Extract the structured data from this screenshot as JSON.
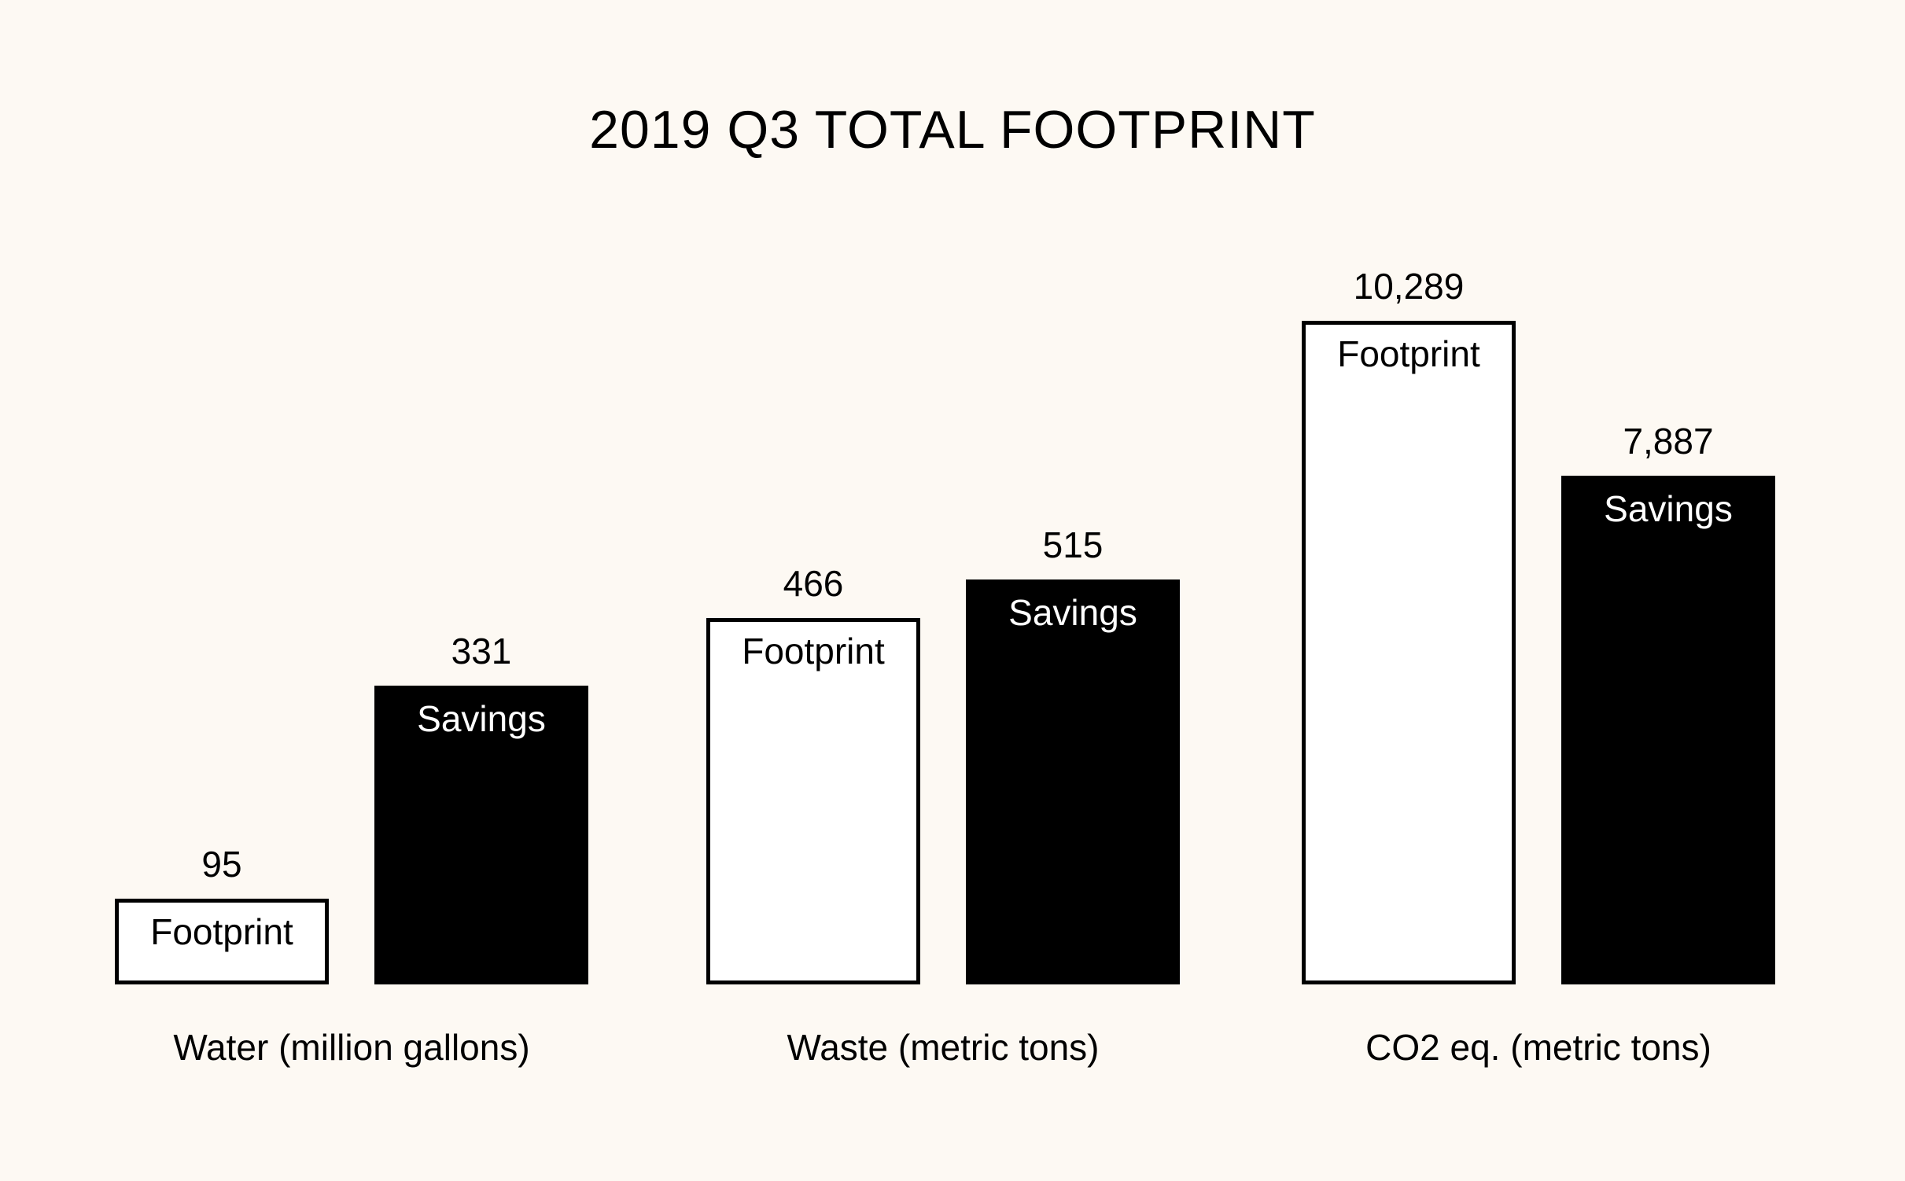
{
  "chart_data": {
    "type": "bar",
    "title": "2019 Q3 TOTAL FOOTPRINT",
    "categories": [
      "Water (million gallons)",
      "Waste (metric tons)",
      "CO2 eq. (metric tons)"
    ],
    "series": [
      {
        "name": "Footprint",
        "values": [
          95,
          466,
          10289
        ],
        "value_labels": [
          "95",
          "466",
          "10,289"
        ],
        "style": "outlined",
        "fill": "#ffffff",
        "stroke": "#000000",
        "text_color": "#000000"
      },
      {
        "name": "Savings",
        "values": [
          331,
          515,
          7887
        ],
        "value_labels": [
          "331",
          "515",
          "7,887"
        ],
        "style": "solid",
        "fill": "#000000",
        "stroke": "#000000",
        "text_color": "#ffffff"
      }
    ],
    "axes_visible": false,
    "grid": false,
    "legend": "none",
    "background": "#fdf9f3"
  }
}
